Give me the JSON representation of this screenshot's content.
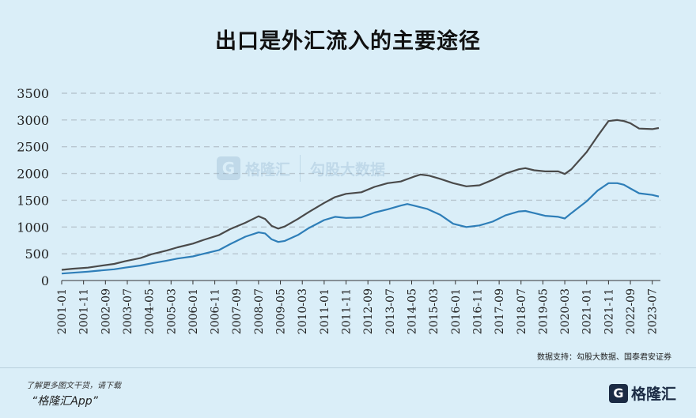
{
  "title": "出口是外汇流入的主要途径",
  "watermark": {
    "logo_glyph": "G",
    "brand": "格隆汇",
    "text": "勾股大数据"
  },
  "source": "数据支持：勾股大数据、国泰君安证券",
  "promo": {
    "line1": "了解更多图文干货，请下载",
    "line2": "“格隆汇App”"
  },
  "brand": {
    "logo_glyph": "G",
    "name": "格隆汇"
  },
  "colors": {
    "background": "#daeef8",
    "series_dark": "#4a4a4a",
    "series_blue": "#2e7eb8",
    "grid": "#b8c6cf"
  },
  "chart_data": {
    "type": "line",
    "title": "出口是外汇流入的主要途径",
    "xlabel": "",
    "ylabel": "",
    "ylim": [
      0,
      3500
    ],
    "yticks": [
      0,
      500,
      1000,
      1500,
      2000,
      2500,
      3000,
      3500
    ],
    "grid": true,
    "legend": "none",
    "x_ticks": [
      "2001-01",
      "2001-11",
      "2002-09",
      "2003-07",
      "2004-05",
      "2005-03",
      "2006-01",
      "2006-11",
      "2007-09",
      "2008-07",
      "2009-05",
      "2010-03",
      "2011-01",
      "2011-11",
      "2012-09",
      "2013-07",
      "2014-05",
      "2015-03",
      "2016-01",
      "2016-11",
      "2017-09",
      "2018-07",
      "2019-05",
      "2020-03",
      "2021-01",
      "2021-11",
      "2022-09",
      "2023-07"
    ],
    "x_range": [
      "2001-01",
      "2023-10"
    ],
    "series": [
      {
        "color": "#4a4a4a",
        "points": [
          [
            "2001-01",
            200
          ],
          [
            "2001-06",
            220
          ],
          [
            "2002-01",
            240
          ],
          [
            "2002-06",
            270
          ],
          [
            "2003-01",
            310
          ],
          [
            "2003-06",
            360
          ],
          [
            "2004-01",
            420
          ],
          [
            "2004-06",
            490
          ],
          [
            "2005-01",
            560
          ],
          [
            "2005-06",
            620
          ],
          [
            "2006-01",
            690
          ],
          [
            "2006-06",
            760
          ],
          [
            "2007-01",
            850
          ],
          [
            "2007-06",
            960
          ],
          [
            "2008-01",
            1080
          ],
          [
            "2008-07",
            1200
          ],
          [
            "2008-10",
            1150
          ],
          [
            "2009-01",
            1020
          ],
          [
            "2009-04",
            970
          ],
          [
            "2009-07",
            1010
          ],
          [
            "2010-01",
            1150
          ],
          [
            "2010-06",
            1280
          ],
          [
            "2011-01",
            1450
          ],
          [
            "2011-06",
            1560
          ],
          [
            "2011-11",
            1620
          ],
          [
            "2012-06",
            1650
          ],
          [
            "2012-12",
            1750
          ],
          [
            "2013-06",
            1820
          ],
          [
            "2013-12",
            1850
          ],
          [
            "2014-06",
            1940
          ],
          [
            "2014-09",
            1980
          ],
          [
            "2015-01",
            1960
          ],
          [
            "2015-06",
            1900
          ],
          [
            "2015-12",
            1820
          ],
          [
            "2016-06",
            1760
          ],
          [
            "2016-12",
            1780
          ],
          [
            "2017-06",
            1880
          ],
          [
            "2017-12",
            2000
          ],
          [
            "2018-06",
            2080
          ],
          [
            "2018-09",
            2100
          ],
          [
            "2019-01",
            2060
          ],
          [
            "2019-06",
            2040
          ],
          [
            "2019-12",
            2040
          ],
          [
            "2020-03",
            1990
          ],
          [
            "2020-06",
            2080
          ],
          [
            "2021-01",
            2400
          ],
          [
            "2021-06",
            2700
          ],
          [
            "2021-11",
            2980
          ],
          [
            "2022-03",
            3000
          ],
          [
            "2022-06",
            2980
          ],
          [
            "2022-09",
            2940
          ],
          [
            "2023-01",
            2840
          ],
          [
            "2023-07",
            2830
          ],
          [
            "2023-10",
            2850
          ]
        ]
      },
      {
        "color": "#2e7eb8",
        "points": [
          [
            "2001-01",
            130
          ],
          [
            "2001-06",
            145
          ],
          [
            "2002-01",
            165
          ],
          [
            "2002-06",
            185
          ],
          [
            "2003-01",
            210
          ],
          [
            "2003-06",
            240
          ],
          [
            "2004-01",
            280
          ],
          [
            "2004-06",
            320
          ],
          [
            "2005-01",
            370
          ],
          [
            "2005-06",
            410
          ],
          [
            "2006-01",
            450
          ],
          [
            "2006-06",
            500
          ],
          [
            "2007-01",
            570
          ],
          [
            "2007-06",
            680
          ],
          [
            "2008-01",
            820
          ],
          [
            "2008-07",
            900
          ],
          [
            "2008-10",
            880
          ],
          [
            "2009-01",
            770
          ],
          [
            "2009-04",
            720
          ],
          [
            "2009-07",
            740
          ],
          [
            "2010-01",
            850
          ],
          [
            "2010-06",
            980
          ],
          [
            "2011-01",
            1130
          ],
          [
            "2011-06",
            1190
          ],
          [
            "2011-11",
            1170
          ],
          [
            "2012-06",
            1180
          ],
          [
            "2012-12",
            1270
          ],
          [
            "2013-06",
            1330
          ],
          [
            "2013-12",
            1400
          ],
          [
            "2014-03",
            1430
          ],
          [
            "2014-06",
            1400
          ],
          [
            "2014-12",
            1340
          ],
          [
            "2015-06",
            1230
          ],
          [
            "2015-12",
            1060
          ],
          [
            "2016-06",
            1000
          ],
          [
            "2016-12",
            1030
          ],
          [
            "2017-06",
            1100
          ],
          [
            "2017-12",
            1220
          ],
          [
            "2018-06",
            1290
          ],
          [
            "2018-09",
            1300
          ],
          [
            "2019-01",
            1260
          ],
          [
            "2019-06",
            1210
          ],
          [
            "2019-12",
            1190
          ],
          [
            "2020-03",
            1160
          ],
          [
            "2020-06",
            1260
          ],
          [
            "2021-01",
            1480
          ],
          [
            "2021-06",
            1680
          ],
          [
            "2021-11",
            1820
          ],
          [
            "2022-03",
            1820
          ],
          [
            "2022-06",
            1790
          ],
          [
            "2022-09",
            1720
          ],
          [
            "2023-01",
            1630
          ],
          [
            "2023-07",
            1600
          ],
          [
            "2023-10",
            1570
          ]
        ]
      }
    ]
  }
}
